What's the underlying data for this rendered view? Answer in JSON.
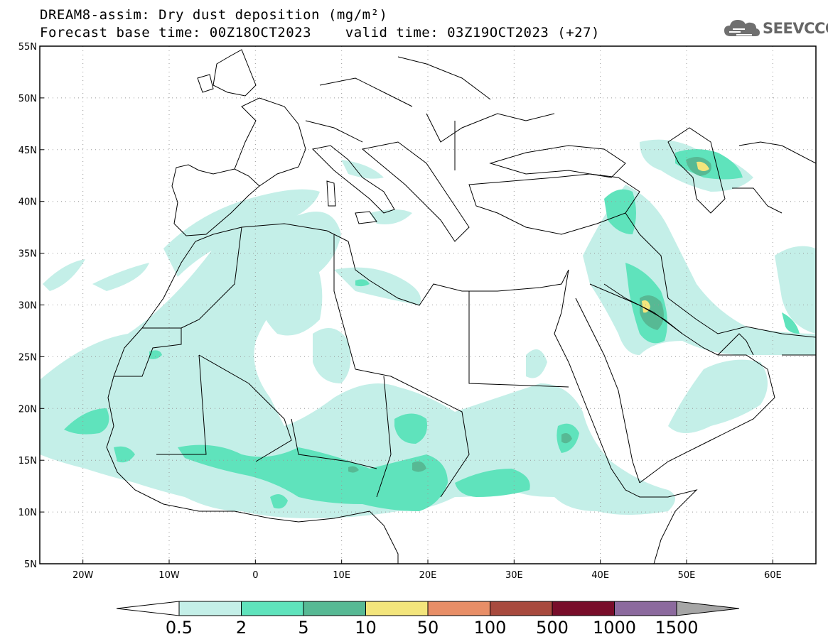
{
  "title_line1": "DREAM8-assim: Dry dust deposition (mg/m²)",
  "title_line2": "Forecast base time: 00Z18OCT2023    valid time: 03Z19OCT2023 (+27)",
  "logo": {
    "icon": "cloud-icon",
    "text": "SEEVCCC"
  },
  "map": {
    "lon_range": [
      -25,
      65
    ],
    "lat_range": [
      5,
      55
    ],
    "lat_ticks": [
      {
        "value": 55,
        "label": "55N"
      },
      {
        "value": 50,
        "label": "50N"
      },
      {
        "value": 45,
        "label": "45N"
      },
      {
        "value": 40,
        "label": "40N"
      },
      {
        "value": 35,
        "label": "35N"
      },
      {
        "value": 30,
        "label": "30N"
      },
      {
        "value": 25,
        "label": "25N"
      },
      {
        "value": 20,
        "label": "20N"
      },
      {
        "value": 15,
        "label": "15N"
      },
      {
        "value": 10,
        "label": "10N"
      },
      {
        "value": 5,
        "label": "5N"
      }
    ],
    "lon_ticks": [
      {
        "value": -20,
        "label": "20W"
      },
      {
        "value": -10,
        "label": "10W"
      },
      {
        "value": 0,
        "label": "0"
      },
      {
        "value": 10,
        "label": "10E"
      },
      {
        "value": 20,
        "label": "20E"
      },
      {
        "value": 30,
        "label": "30E"
      },
      {
        "value": 40,
        "label": "40E"
      },
      {
        "value": 50,
        "label": "50E"
      },
      {
        "value": 60,
        "label": "60E"
      }
    ],
    "grid": "dotted"
  },
  "colorbar": {
    "labels": [
      "0.5",
      "2",
      "5",
      "10",
      "50",
      "100",
      "500",
      "1000",
      "1500"
    ],
    "colors": [
      "#c4efe8",
      "#5fe3bc",
      "#57b994",
      "#f3e57c",
      "#e88e67",
      "#a84a3e",
      "#780d2a",
      "#8c6a9e"
    ],
    "under_color": "#ffffff",
    "over_color": "#a6a6a6"
  }
}
